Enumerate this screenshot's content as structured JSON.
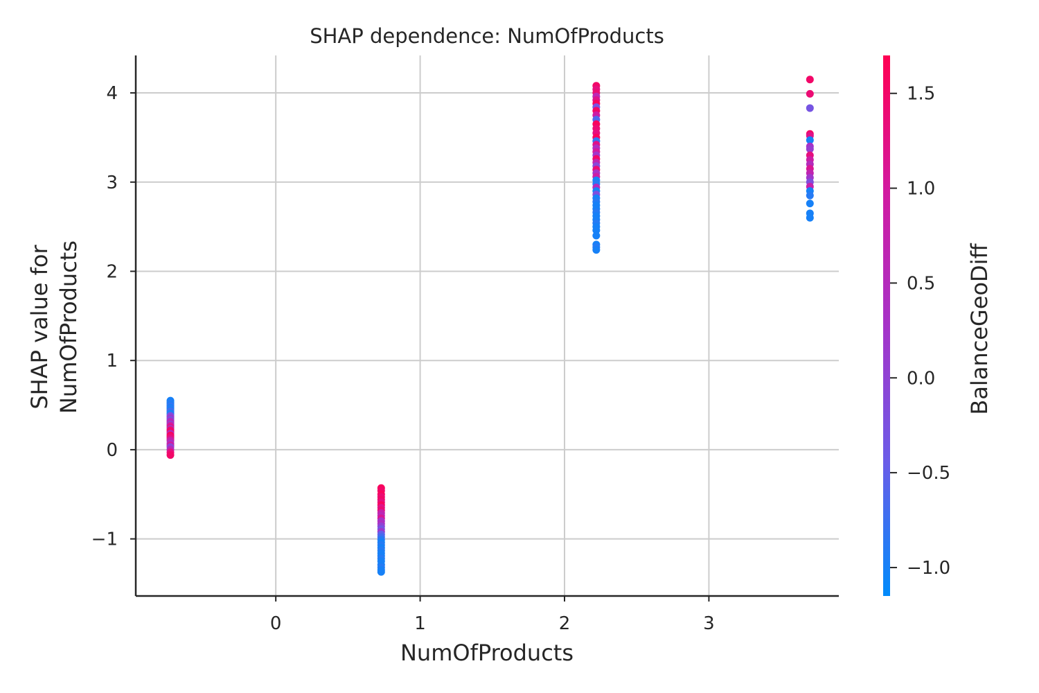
{
  "chart_data": {
    "type": "scatter",
    "title": "SHAP dependence: NumOfProducts",
    "xlabel": "NumOfProducts",
    "ylabel_lines": [
      "SHAP value for",
      "NumOfProducts"
    ],
    "xlim": [
      -0.97,
      3.9
    ],
    "ylim": [
      -1.64,
      4.42
    ],
    "xticks": [
      0,
      1,
      2,
      3
    ],
    "xtick_labels": [
      "0",
      "1",
      "2",
      "3"
    ],
    "yticks": [
      -1,
      0,
      1,
      2,
      3,
      4
    ],
    "ytick_labels": [
      "−1",
      "0",
      "1",
      "2",
      "3",
      "4"
    ],
    "grid": true,
    "colorbar": {
      "label": "BalanceGeoDiff",
      "range": [
        -1.15,
        1.7
      ],
      "ticks": [
        -1.0,
        -0.5,
        0.0,
        0.5,
        1.0,
        1.5
      ],
      "tick_labels": [
        "−1.0",
        "−0.5",
        "0.0",
        "0.5",
        "1.0",
        "1.5"
      ],
      "colormap": [
        "#008bfb",
        "#6b5ce8",
        "#a633c8",
        "#d21aa0",
        "#ff0052"
      ]
    },
    "groups": [
      {
        "x": -0.73,
        "points": [
          [
            0.55,
            -1.0
          ],
          [
            0.53,
            -1.0
          ],
          [
            0.52,
            -0.9
          ],
          [
            0.5,
            -1.0
          ],
          [
            0.49,
            -0.8
          ],
          [
            0.47,
            -1.0
          ],
          [
            0.46,
            -0.9
          ],
          [
            0.44,
            -1.0
          ],
          [
            0.43,
            -0.7
          ],
          [
            0.41,
            -0.9
          ],
          [
            0.4,
            -1.0
          ],
          [
            0.38,
            -0.3
          ],
          [
            0.37,
            -0.1
          ],
          [
            0.35,
            0.2
          ],
          [
            0.33,
            -0.5
          ],
          [
            0.32,
            0.4
          ],
          [
            0.3,
            0.6
          ],
          [
            0.28,
            -0.2
          ],
          [
            0.27,
            0.9
          ],
          [
            0.25,
            1.2
          ],
          [
            0.23,
            0.1
          ],
          [
            0.22,
            1.4
          ],
          [
            0.2,
            1.5
          ],
          [
            0.18,
            0.5
          ],
          [
            0.16,
            1.6
          ],
          [
            0.14,
            1.4
          ],
          [
            0.12,
            1.2
          ],
          [
            0.1,
            0.8
          ],
          [
            0.07,
            0.3
          ],
          [
            0.05,
            1.0
          ],
          [
            0.03,
            0.0
          ],
          [
            0.0,
            0.6
          ],
          [
            -0.03,
            1.3
          ],
          [
            -0.06,
            1.5
          ]
        ]
      },
      {
        "x": 0.73,
        "points": [
          [
            -0.43,
            1.6
          ],
          [
            -0.46,
            1.5
          ],
          [
            -0.5,
            1.6
          ],
          [
            -0.53,
            1.4
          ],
          [
            -0.56,
            1.5
          ],
          [
            -0.59,
            1.3
          ],
          [
            -0.62,
            1.6
          ],
          [
            -0.65,
            1.2
          ],
          [
            -0.68,
            1.4
          ],
          [
            -0.71,
            0.8
          ],
          [
            -0.74,
            0.6
          ],
          [
            -0.77,
            1.1
          ],
          [
            -0.8,
            0.3
          ],
          [
            -0.83,
            0.4
          ],
          [
            -0.86,
            0.0
          ],
          [
            -0.89,
            -0.3
          ],
          [
            -0.92,
            0.2
          ],
          [
            -0.95,
            -0.5
          ],
          [
            -0.98,
            -0.7
          ],
          [
            -1.01,
            -0.9
          ],
          [
            -1.04,
            -1.0
          ],
          [
            -1.07,
            -0.9
          ],
          [
            -1.1,
            -1.0
          ],
          [
            -1.13,
            -0.9
          ],
          [
            -1.16,
            -1.0
          ],
          [
            -1.19,
            -1.0
          ],
          [
            -1.22,
            -0.9
          ],
          [
            -1.25,
            -1.0
          ],
          [
            -1.29,
            -1.0
          ],
          [
            -1.32,
            -0.9
          ],
          [
            -1.35,
            -1.0
          ],
          [
            -1.37,
            -1.0
          ]
        ]
      },
      {
        "x": 2.22,
        "points": [
          [
            4.08,
            1.5
          ],
          [
            4.04,
            1.3
          ],
          [
            4.0,
            1.4
          ],
          [
            3.96,
            0.6
          ],
          [
            3.92,
            1.2
          ],
          [
            3.88,
            1.6
          ],
          [
            3.84,
            -0.3
          ],
          [
            3.8,
            1.5
          ],
          [
            3.75,
            0.9
          ],
          [
            3.7,
            -0.6
          ],
          [
            3.65,
            1.6
          ],
          [
            3.6,
            1.4
          ],
          [
            3.55,
            1.3
          ],
          [
            3.5,
            1.6
          ],
          [
            3.46,
            -0.8
          ],
          [
            3.42,
            1.2
          ],
          [
            3.38,
            0.4
          ],
          [
            3.34,
            1.0
          ],
          [
            3.3,
            0.2
          ],
          [
            3.26,
            1.5
          ],
          [
            3.22,
            0.7
          ],
          [
            3.18,
            -0.1
          ],
          [
            3.14,
            1.4
          ],
          [
            3.1,
            0.3
          ],
          [
            3.06,
            0.9
          ],
          [
            3.02,
            -1.0
          ],
          [
            2.98,
            -0.9
          ],
          [
            2.94,
            0.5
          ],
          [
            2.9,
            -1.0
          ],
          [
            2.86,
            -0.2
          ],
          [
            2.82,
            -1.0
          ],
          [
            2.78,
            -0.9
          ],
          [
            2.74,
            -1.0
          ],
          [
            2.7,
            -1.0
          ],
          [
            2.66,
            -0.9
          ],
          [
            2.62,
            -1.0
          ],
          [
            2.58,
            -1.0
          ],
          [
            2.54,
            -0.9
          ],
          [
            2.5,
            -1.0
          ],
          [
            2.46,
            -1.0
          ],
          [
            2.4,
            -1.0
          ],
          [
            2.3,
            -1.0
          ],
          [
            2.27,
            -0.9
          ],
          [
            2.24,
            -1.0
          ]
        ]
      },
      {
        "x": 3.7,
        "points": [
          [
            4.15,
            1.5
          ],
          [
            3.99,
            1.4
          ],
          [
            3.83,
            -0.3
          ],
          [
            3.54,
            1.5
          ],
          [
            3.52,
            1.2
          ],
          [
            3.47,
            -1.0
          ],
          [
            3.4,
            0.3
          ],
          [
            3.37,
            0.1
          ],
          [
            3.3,
            1.3
          ],
          [
            3.25,
            0.9
          ],
          [
            3.2,
            0.5
          ],
          [
            3.15,
            1.1
          ],
          [
            3.1,
            0.7
          ],
          [
            3.05,
            0.2
          ],
          [
            3.0,
            -0.2
          ],
          [
            2.95,
            0.8
          ],
          [
            2.9,
            -1.0
          ],
          [
            2.85,
            -0.9
          ],
          [
            2.76,
            -1.0
          ],
          [
            2.65,
            -1.0
          ],
          [
            2.6,
            -1.0
          ]
        ]
      }
    ]
  }
}
